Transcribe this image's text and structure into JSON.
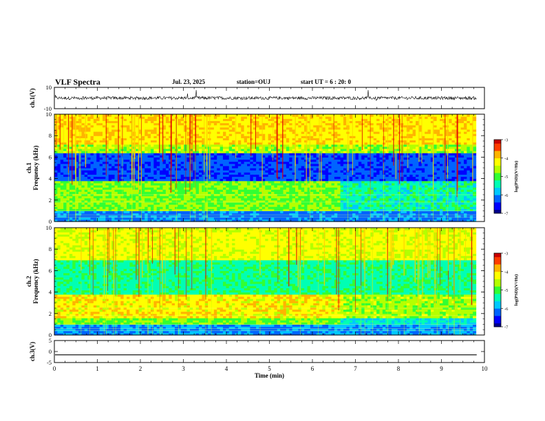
{
  "header": {
    "title": "VLF Spectra",
    "date": "Jul. 23, 2025",
    "station": "station=OUJ",
    "start": "start UT =  6 : 20: 0"
  },
  "chart_data": [
    {
      "type": "line",
      "panel": "waveform-ch1",
      "ylabel": "ch.1(V)",
      "ylim": [
        -10,
        10
      ],
      "yticks": [
        10,
        -10
      ],
      "xlim": [
        0,
        10
      ],
      "baseline": 0,
      "note_series": "noise waveform around 0 V with spikes"
    },
    {
      "type": "heatmap",
      "panel": "spectrogram-ch1",
      "ylabel_lines": [
        "ch.1",
        "Frequency (kHz)"
      ],
      "ylim": [
        0,
        10
      ],
      "yticks": [
        0,
        2,
        4,
        6,
        8,
        10
      ],
      "xlim": [
        0,
        9.8
      ],
      "colorbar": {
        "label": "log(PSD)(V²/Hz)",
        "range": [
          -7,
          -3
        ],
        "ticks": [
          -3,
          -4,
          -5,
          -6,
          -7
        ]
      }
    },
    {
      "type": "heatmap",
      "panel": "spectrogram-ch2",
      "ylabel_lines": [
        "ch.2",
        "Frequency (kHz)"
      ],
      "ylim": [
        0,
        10
      ],
      "yticks": [
        0,
        2,
        4,
        6,
        8,
        10
      ],
      "xlim": [
        0,
        9.8
      ],
      "colorbar": {
        "label": "log(PSD)(V²/Hz)",
        "range": [
          -7,
          -3
        ],
        "ticks": [
          -3,
          -4,
          -5,
          -6,
          -7
        ]
      }
    },
    {
      "type": "line",
      "panel": "waveform-ch3",
      "ylabel": "ch.3(V)",
      "ylim": [
        -5,
        5
      ],
      "yticks": [
        5,
        0,
        -5
      ],
      "xlim": [
        0,
        10
      ],
      "baseline": -1.5
    }
  ],
  "x_axis": {
    "label": "Time (min)",
    "ticks": [
      0,
      1,
      2,
      3,
      4,
      5,
      6,
      7,
      8,
      9,
      10
    ]
  },
  "colors": {
    "colormap": [
      "#00008c",
      "#0000ff",
      "#0064ff",
      "#00c8ff",
      "#00ffb4",
      "#32ff32",
      "#b4ff00",
      "#ffff00",
      "#ffb400",
      "#ff3c00",
      "#c80000"
    ]
  }
}
